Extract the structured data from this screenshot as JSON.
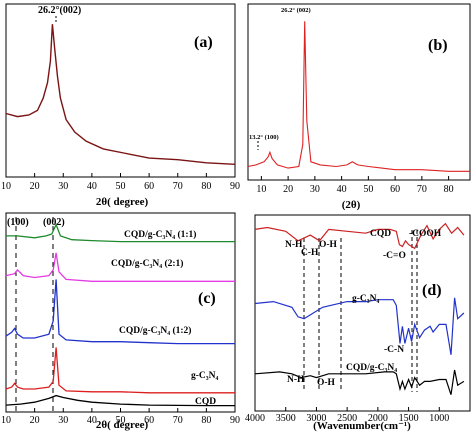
{
  "chart_data": [
    {
      "type": "line",
      "panel_label": "(a)",
      "xlabel": "2θ( degree)",
      "xlim": [
        10,
        90
      ],
      "x_ticks": [
        "10",
        "20",
        "30",
        "40",
        "50",
        "60",
        "70",
        "80",
        "90"
      ],
      "ylim": [
        0,
        100
      ],
      "annotations": [
        {
          "text": "26.2°(002)",
          "x": 26.2
        }
      ],
      "series": [
        {
          "color": "#7a1414",
          "x": [
            10,
            14,
            18,
            21,
            23,
            24.5,
            25.5,
            26.2,
            27,
            28,
            29,
            31,
            34,
            38,
            44,
            52,
            60,
            70,
            80,
            90
          ],
          "y": [
            38,
            36,
            37,
            40,
            48,
            58,
            72,
            96,
            80,
            62,
            48,
            34,
            26,
            20,
            15,
            12,
            9,
            8,
            6,
            5
          ]
        }
      ]
    },
    {
      "type": "line",
      "panel_label": "(b)",
      "xlabel": "(2θ)",
      "xlim": [
        5,
        88
      ],
      "x_ticks": [
        "10",
        "20",
        "30",
        "40",
        "50",
        "60",
        "70",
        "80"
      ],
      "ylim": [
        0,
        100
      ],
      "annotations": [
        {
          "text": "26.2° (002)",
          "x": 26.2
        },
        {
          "text": "13.2° (100)",
          "x": 13.2
        }
      ],
      "series": [
        {
          "color": "#dd2222",
          "x": [
            5,
            8,
            11,
            12.5,
            13.2,
            14,
            16,
            20,
            24,
            25.5,
            26.2,
            27,
            28.5,
            32,
            38,
            42,
            44,
            46,
            50,
            55,
            60,
            70,
            80,
            88
          ],
          "y": [
            6,
            7,
            9,
            12,
            15,
            11,
            7,
            5,
            6,
            20,
            98,
            35,
            9,
            7,
            6,
            7,
            9,
            7,
            6,
            5,
            4,
            4,
            3,
            3
          ]
        }
      ]
    },
    {
      "type": "line",
      "panel_label": "(c)",
      "xlabel": "2θ( degree)",
      "xlim": [
        10,
        90
      ],
      "x_ticks": [
        "10",
        "20",
        "30",
        "40",
        "50",
        "60",
        "70",
        "80",
        "90"
      ],
      "ylim": [
        0,
        100
      ],
      "annotations": [
        {
          "text": "(100)",
          "x": 13.2
        },
        {
          "text": "(002)",
          "x": 27.5
        }
      ],
      "series": [
        {
          "name": "CQD/g-C3N4 (1:1)",
          "color": "#1f8a2e",
          "offset": 87,
          "x": [
            10,
            14,
            20,
            24,
            26,
            27.5,
            29,
            33,
            40,
            50,
            60,
            70,
            80,
            90
          ],
          "y": [
            3,
            3,
            2,
            3,
            4,
            9,
            3,
            1,
            0.5,
            0,
            0,
            0,
            0,
            0
          ]
        },
        {
          "name": "CQD/g-C3N4 (2:1)",
          "color": "#e23ce2",
          "offset": 66,
          "x": [
            10,
            13,
            14,
            16,
            20,
            25,
            26.5,
            27.5,
            28.5,
            31,
            40,
            50,
            60,
            70,
            80,
            90
          ],
          "y": [
            3,
            4,
            6,
            3,
            2,
            3,
            6,
            15,
            5,
            1,
            0,
            0,
            0,
            0,
            0,
            0
          ]
        },
        {
          "name": "CQD/g-C3N4 (1:2)",
          "color": "#2233cc",
          "offset": 33,
          "x": [
            10,
            12,
            13,
            14,
            16,
            20,
            25,
            26.5,
            27.5,
            28.5,
            31,
            40,
            50,
            60,
            70,
            80,
            90
          ],
          "y": [
            4,
            6,
            8,
            5,
            3,
            3,
            5,
            12,
            34,
            5,
            2,
            1,
            1,
            0.5,
            0,
            0,
            0
          ]
        },
        {
          "name": "g-C3N4",
          "color": "#dd1e1e",
          "offset": 7,
          "x": [
            10,
            12,
            13,
            14,
            16,
            20,
            25,
            26.5,
            27.5,
            28.5,
            31,
            40,
            50,
            60,
            70,
            80,
            90
          ],
          "y": [
            2,
            3,
            5,
            3,
            2,
            2,
            3,
            6,
            24,
            4,
            1,
            0.5,
            0.5,
            0,
            0,
            0,
            0
          ]
        },
        {
          "name": "CQD",
          "color": "#000000",
          "offset": 0,
          "x": [
            10,
            15,
            20,
            25,
            27.5,
            30,
            35,
            40,
            50,
            60,
            70,
            80,
            90
          ],
          "y": [
            0.5,
            1,
            2,
            4,
            5.5,
            4.5,
            3,
            2,
            1,
            0.5,
            0.3,
            0.2,
            0.2
          ]
        }
      ],
      "labels": [
        {
          "text": "CQD/g-C₃N₄ (1:1)",
          "series": "CQD/g-C3N4 (1:1)"
        },
        {
          "text": "CQD/g-C₃N₄ (2:1)",
          "series": "CQD/g-C3N4 (2:1)"
        },
        {
          "text": "CQD/g-C₃N₄ (1:2)",
          "series": "CQD/g-C3N4 (1:2)"
        },
        {
          "text": "g-C₃N₄",
          "series": "g-C3N4"
        },
        {
          "text": "CQD",
          "series": "CQD"
        }
      ]
    },
    {
      "type": "line",
      "panel_label": "(d)",
      "xlabel": "(Wavenumber(cm⁻¹)",
      "xlim": [
        4000,
        500
      ],
      "x_ticks": [
        "4000",
        "3500",
        "3000",
        "2500",
        "2000",
        "1500",
        "1000"
      ],
      "ylim": [
        0,
        100
      ],
      "series": [
        {
          "name": "CQD",
          "color": "#cc2222",
          "x": [
            4000,
            3800,
            3500,
            3300,
            3100,
            2950,
            2800,
            2500,
            2200,
            2000,
            1800,
            1700,
            1650,
            1600,
            1550,
            1500,
            1400,
            1300,
            1200,
            1100,
            1000,
            900,
            800,
            700,
            600
          ],
          "y": [
            94,
            95,
            93,
            88,
            91,
            88,
            94,
            93,
            92,
            94,
            94,
            93,
            86,
            85,
            88,
            86,
            84,
            91,
            96,
            89,
            94,
            97,
            92,
            95,
            91
          ]
        },
        {
          "name": "g-C3N4",
          "color": "#2233cc",
          "x": [
            4000,
            3700,
            3400,
            3300,
            3200,
            3100,
            2900,
            2500,
            2200,
            2000,
            1750,
            1700,
            1640,
            1600,
            1560,
            1500,
            1450,
            1400,
            1320,
            1240,
            1150,
            1100,
            1000,
            890,
            810,
            750,
            700,
            600
          ],
          "y": [
            55,
            56,
            53,
            48,
            47,
            49,
            53,
            56,
            56,
            57,
            57,
            54,
            34,
            43,
            34,
            42,
            35,
            44,
            37,
            41,
            43,
            40,
            44,
            44,
            28,
            58,
            47,
            50
          ]
        },
        {
          "name": "CQD/g-C3N4",
          "color": "#000000",
          "x": [
            4000,
            3600,
            3400,
            3250,
            3100,
            3000,
            2800,
            2400,
            2200,
            1900,
            1750,
            1700,
            1640,
            1600,
            1560,
            1500,
            1450,
            1400,
            1320,
            1240,
            1150,
            1000,
            890,
            810,
            750,
            700,
            600
          ],
          "y": [
            18,
            19,
            18,
            16,
            17,
            16,
            18,
            18,
            18,
            19,
            19,
            18,
            10,
            14,
            10,
            15,
            11,
            16,
            12,
            14,
            14,
            15,
            15,
            7,
            20,
            12,
            14
          ]
        }
      ],
      "annotations": [
        "CQD",
        "-COOH",
        "-C=O",
        "N-H",
        "C-H",
        "O-H",
        "g-C₃N₄",
        "-C-N",
        "N-H",
        "O-H",
        "CQD/g-C₃N₄"
      ]
    }
  ]
}
